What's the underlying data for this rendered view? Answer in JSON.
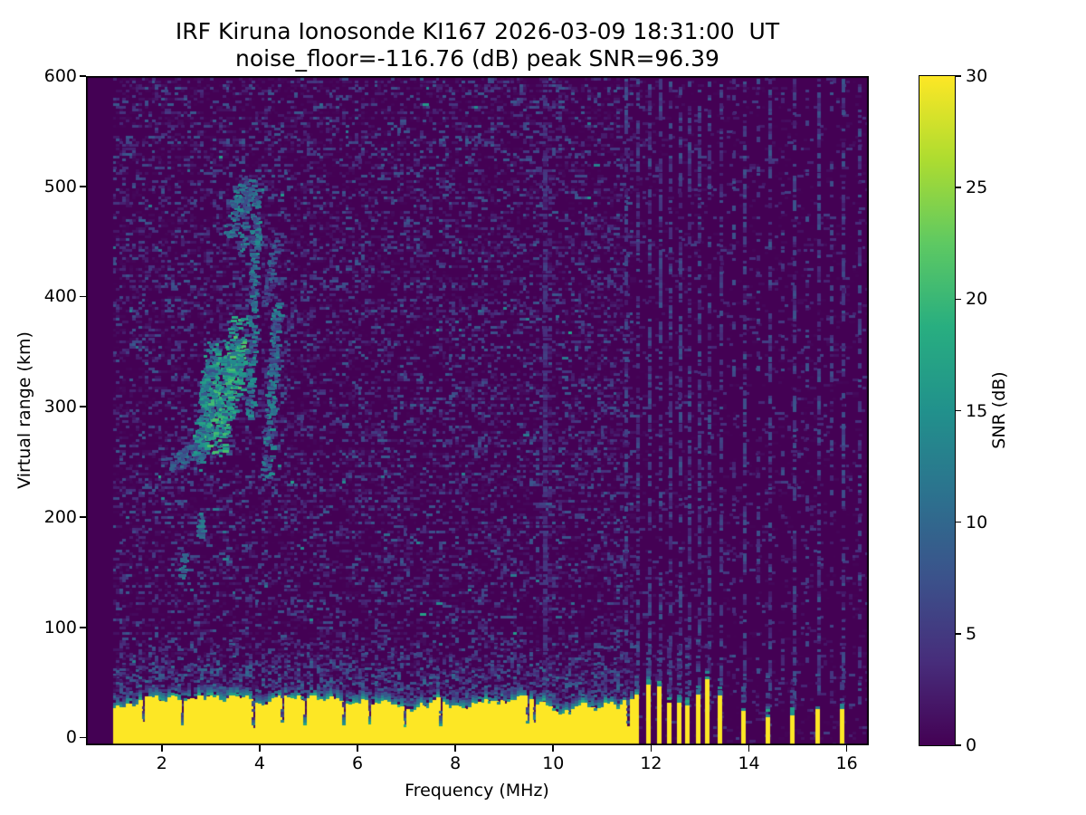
{
  "chart_data": {
    "type": "heatmap",
    "title": "IRF Kiruna Ionosonde KI167 2026-03-09 18:31:00  UT",
    "subtitle": "noise_floor=-116.76 (dB) peak SNR=96.39",
    "station": "IRF Kiruna",
    "instrument": "Ionosonde KI167",
    "timestamp_ut": "2026-03-09 18:31:00",
    "noise_floor_db": -116.76,
    "peak_snr_db": 96.39,
    "xlabel": "Frequency (MHz)",
    "ylabel": "Virtual range (km)",
    "xlim": [
      0.45,
      16.45
    ],
    "ylim": [
      -7,
      600
    ],
    "xticks": [
      2,
      4,
      6,
      8,
      10,
      12,
      14,
      16
    ],
    "yticks": [
      0,
      100,
      200,
      300,
      400,
      500,
      600
    ],
    "colorbar": {
      "label": "SNR (dB)",
      "ticks": [
        0,
        5,
        10,
        15,
        20,
        25,
        30
      ],
      "clim": [
        0,
        30
      ],
      "colormap": "viridis",
      "stops": [
        "#440154",
        "#472d7b",
        "#3b528b",
        "#2c728e",
        "#21918c",
        "#28ae80",
        "#5ec962",
        "#addc30",
        "#fde725"
      ]
    },
    "bins": {
      "freq_mhz": 0.066,
      "range_km": 2.5
    },
    "signal_start_mhz": 1.0,
    "features": {
      "ground_band": {
        "freq_start_mhz": 1.0,
        "freq_end_mhz": 11.62,
        "top_km_min": 15,
        "top_km_max": 38,
        "snr_db": 30,
        "notch_prob": 0.085
      },
      "rfi_bars_dense_mhz": [
        11.7,
        11.94,
        12.16,
        12.37,
        12.57,
        12.75,
        12.96,
        13.15
      ],
      "rfi_bars_sparse_mhz": [
        13.4,
        13.88,
        14.39,
        14.89,
        15.4,
        15.9
      ],
      "stripes_full": [
        {
          "f_mhz": 9.8,
          "density": 0.78,
          "snr_db": [
            2,
            6
          ]
        },
        {
          "f_mhz": 9.88,
          "density": 0.35,
          "snr_db": [
            1,
            4
          ]
        }
      ],
      "stripes_dashed": [
        {
          "f_mhz": 11.45,
          "density": 0.4
        },
        {
          "f_mhz": 11.7,
          "density": 0.5
        },
        {
          "f_mhz": 11.94,
          "density": 0.5
        },
        {
          "f_mhz": 12.16,
          "density": 0.5
        },
        {
          "f_mhz": 12.37,
          "density": 0.5
        },
        {
          "f_mhz": 12.57,
          "density": 0.5
        },
        {
          "f_mhz": 12.75,
          "density": 0.5
        },
        {
          "f_mhz": 12.96,
          "density": 0.5
        },
        {
          "f_mhz": 13.15,
          "density": 0.4
        },
        {
          "f_mhz": 13.4,
          "density": 0.45
        },
        {
          "f_mhz": 13.65,
          "density": 0.18
        },
        {
          "f_mhz": 13.88,
          "density": 0.45
        },
        {
          "f_mhz": 14.15,
          "density": 0.18
        },
        {
          "f_mhz": 14.39,
          "density": 0.45
        },
        {
          "f_mhz": 14.65,
          "density": 0.18
        },
        {
          "f_mhz": 14.89,
          "density": 0.45
        },
        {
          "f_mhz": 15.15,
          "density": 0.18
        },
        {
          "f_mhz": 15.4,
          "density": 0.45
        },
        {
          "f_mhz": 15.65,
          "density": 0.18
        },
        {
          "f_mhz": 15.9,
          "density": 0.45
        },
        {
          "f_mhz": 16.22,
          "density": 0.28
        }
      ],
      "stripe_dashed_snr_db": [
        2,
        8
      ],
      "echo_traces": [
        {
          "label": "E-region echo a",
          "f": [
            2.36,
            2.46
          ],
          "r": [
            148,
            172
          ],
          "f_jit": 0.05,
          "r_jit": 12,
          "snr": [
            7,
            14
          ],
          "n": 22
        },
        {
          "label": "E-region echo b",
          "f": [
            2.7,
            2.82
          ],
          "r": [
            183,
            202
          ],
          "f_jit": 0.05,
          "r_jit": 12,
          "snr": [
            7,
            14
          ],
          "n": 22
        },
        {
          "label": "F-trace tail",
          "f": [
            2.16,
            2.72
          ],
          "r": [
            249,
            263
          ],
          "f_jit": 0.08,
          "r_jit": 14,
          "snr": [
            4,
            12
          ],
          "n": 95
        },
        {
          "label": "F-trace left",
          "f": [
            2.72,
            3.02
          ],
          "r": [
            261,
            346
          ],
          "f_jit": 0.12,
          "r_jit": 40,
          "snr": [
            7,
            18
          ],
          "n": 270
        },
        {
          "label": "F-trace main",
          "f": [
            3.05,
            3.56
          ],
          "r": [
            277,
            363
          ],
          "f_jit": 0.2,
          "r_jit": 50,
          "snr": [
            9,
            22
          ],
          "n": 440
        },
        {
          "label": "streak 3.8 MHz",
          "f": [
            3.76,
            3.9
          ],
          "r": [
            293,
            500
          ],
          "f_jit": 0.07,
          "r_jit": 10,
          "snr": [
            5,
            15
          ],
          "n": 240
        },
        {
          "label": "streak 3.65 MHz high",
          "f": [
            3.58,
            3.74
          ],
          "r": [
            438,
            506
          ],
          "f_jit": 0.07,
          "r_jit": 8,
          "snr": [
            5,
            14
          ],
          "n": 70
        },
        {
          "label": "streak 4.2 MHz",
          "f": [
            4.1,
            4.32
          ],
          "r": [
            237,
            392
          ],
          "f_jit": 0.09,
          "r_jit": 10,
          "snr": [
            5,
            15
          ],
          "n": 215
        },
        {
          "label": "streak 4.2 MHz high",
          "f": [
            4.08,
            4.28
          ],
          "r": [
            392,
            452
          ],
          "f_jit": 0.07,
          "r_jit": 8,
          "snr": [
            3,
            10
          ],
          "n": 55
        },
        {
          "label": "second hop",
          "f": [
            3.3,
            3.62
          ],
          "r": [
            452,
            503
          ],
          "f_jit": 0.1,
          "r_jit": 14,
          "snr": [
            6,
            15
          ],
          "n": 75
        }
      ]
    },
    "render": {
      "seed": 167031831,
      "noise_density_left": 0.48,
      "noise_density_right": 0.13,
      "noise_max_snr_db": 8.5,
      "bright_speckle_prob": 0.003,
      "bright_speckle_snr_db": [
        10,
        17
      ],
      "region_split_mhz": 11.62
    }
  }
}
